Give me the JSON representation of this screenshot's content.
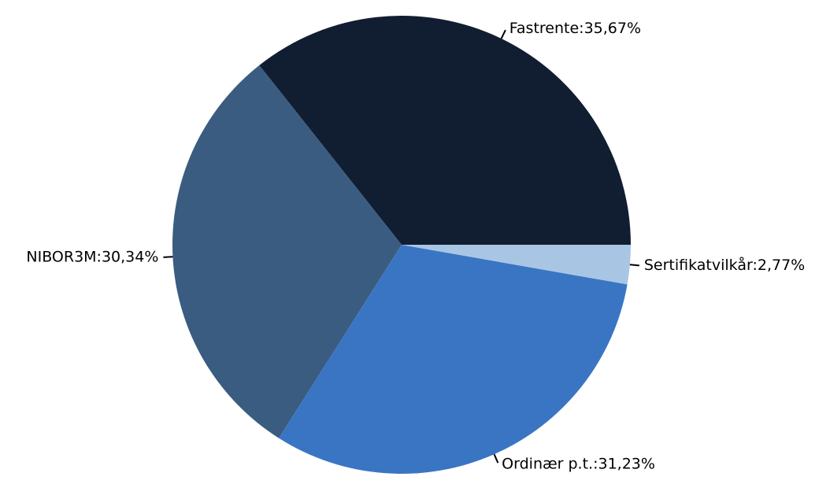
{
  "chart_data": {
    "type": "pie",
    "values": [
      35.67,
      30.34,
      31.23,
      2.77
    ],
    "value_labels": [
      "Fastrente:35,67%",
      "NIBOR3M:30,34%",
      "Ordinær p.t.:31,23%",
      "Sertifikatvilkår:2,77%"
    ],
    "colors": [
      "#111e31",
      "#3a5c80",
      "#3a75c4",
      "#a8c6e3"
    ]
  }
}
